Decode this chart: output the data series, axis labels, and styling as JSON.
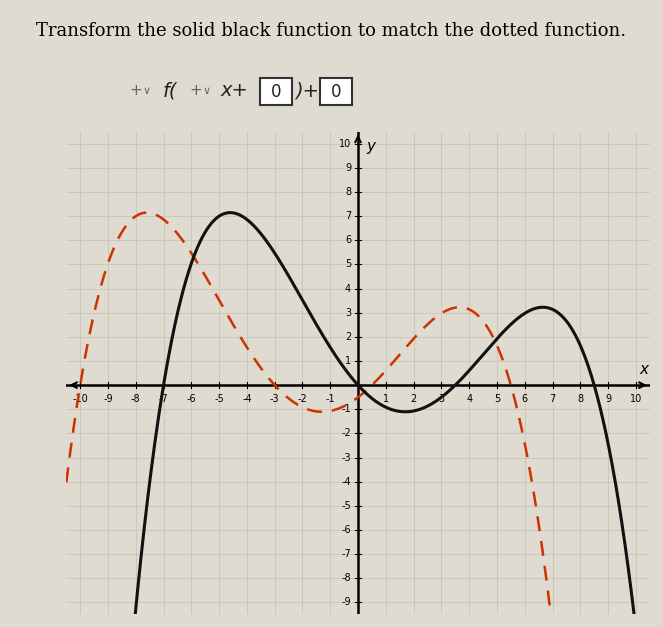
{
  "title": "Transform the solid black function to match the dotted function.",
  "title_fontsize": 13,
  "xlim": [
    -10.5,
    10.5
  ],
  "ylim": [
    -9.5,
    10.5
  ],
  "xticks": [
    -10,
    -9,
    -8,
    -7,
    -6,
    -5,
    -4,
    -3,
    -2,
    -1,
    1,
    2,
    3,
    4,
    5,
    6,
    7,
    8,
    9,
    10
  ],
  "yticks": [
    -9,
    -8,
    -7,
    -6,
    -5,
    -4,
    -3,
    -2,
    -1,
    1,
    2,
    3,
    4,
    5,
    6,
    7,
    8,
    9,
    10
  ],
  "black_curve_color": "#111111",
  "dotted_curve_color": "#cc3300",
  "shift": 3,
  "poly_a": 0.0061,
  "poly_roots": [
    -7.0,
    0.0,
    3.5,
    8.5
  ],
  "background_color": "#e0dbd0",
  "grid_color": "#c8c4b8",
  "grid_lw": 0.6
}
